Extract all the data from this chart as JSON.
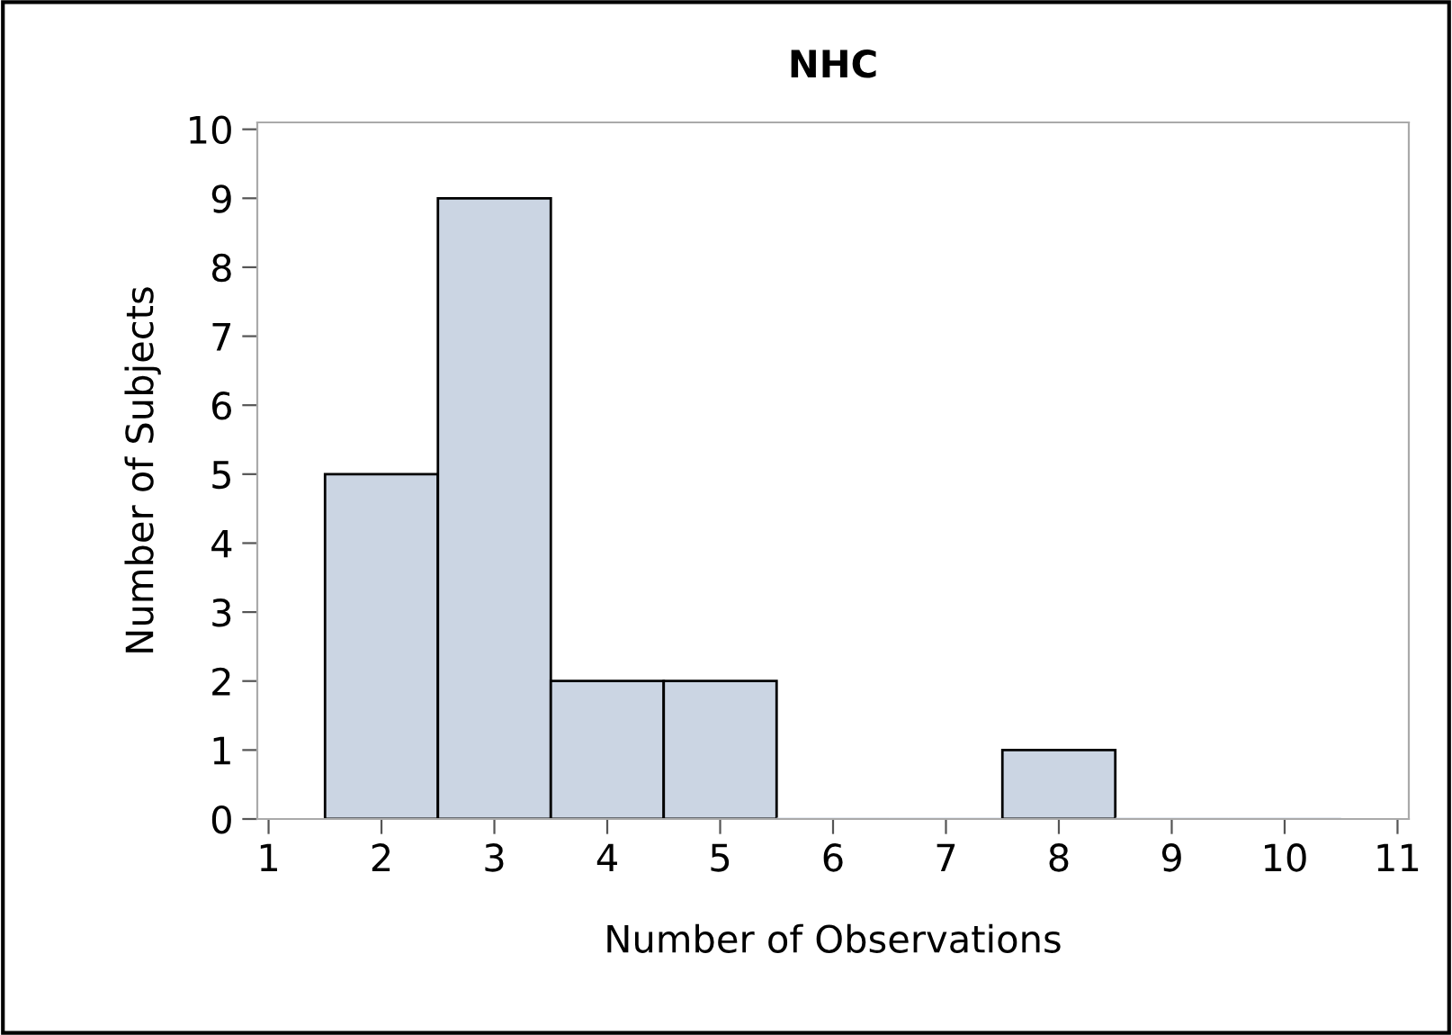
{
  "chart_data": {
    "type": "histogram",
    "title": "NHC",
    "xlabel": "Number of Observations",
    "ylabel": "Number of Subjects",
    "bins": [
      1.5,
      2.5,
      3.5,
      4.5,
      5.5,
      6.5,
      7.5,
      8.5,
      9.5,
      10.5
    ],
    "values": [
      5,
      9,
      2,
      2,
      0,
      0,
      1,
      0,
      0
    ],
    "color": "#cbd5e3",
    "xlim": [
      0.9,
      11.1
    ],
    "xticks": [
      1,
      2,
      3,
      4,
      5,
      6,
      7,
      8,
      9,
      10,
      11
    ],
    "ylim": [
      0,
      10.1
    ],
    "yticks": [
      0,
      1,
      2,
      3,
      4,
      5,
      6,
      7,
      8,
      9,
      10
    ],
    "grid": false,
    "legend": false
  }
}
